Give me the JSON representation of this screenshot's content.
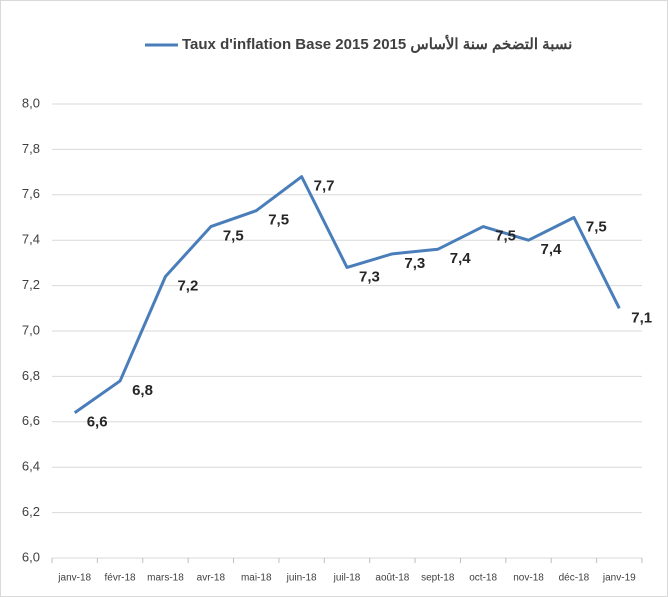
{
  "chart_data": {
    "type": "line",
    "categories": [
      "janv-18",
      "févr-18",
      "mars-18",
      "avr-18",
      "mai-18",
      "juin-18",
      "juil-18",
      "août-18",
      "sept-18",
      "oct-18",
      "nov-18",
      "déc-18",
      "janv-19"
    ],
    "series": [
      {
        "name": "Taux d'inflation Base 2015 نسبة التضخم سنة الأساس 2015",
        "color": "#4a7ebb",
        "values": [
          6.64,
          6.78,
          7.24,
          7.46,
          7.53,
          7.68,
          7.28,
          7.34,
          7.36,
          7.46,
          7.4,
          7.5,
          7.1
        ],
        "value_labels": [
          "6,6",
          "6,8",
          "7,2",
          "7,5",
          "7,5",
          "7,7",
          "7,3",
          "7,3",
          "7,4",
          "7,5",
          "7,4",
          "7,5",
          "7,1"
        ]
      }
    ],
    "ylim": [
      6,
      8
    ],
    "yticks": [
      {
        "value": 6,
        "label": "6,0"
      },
      {
        "value": 6.2,
        "label": "6,2"
      },
      {
        "value": 6.4,
        "label": "6,4"
      },
      {
        "value": 6.6,
        "label": "6,6"
      },
      {
        "value": 6.8,
        "label": "6,8"
      },
      {
        "value": 7,
        "label": "7,0"
      },
      {
        "value": 7.2,
        "label": "7,2"
      },
      {
        "value": 7.4,
        "label": "7,4"
      },
      {
        "value": 7.6,
        "label": "7,6"
      },
      {
        "value": 7.8,
        "label": "7,8"
      },
      {
        "value": 8,
        "label": "8,0"
      }
    ],
    "grid": true,
    "legend": "top"
  }
}
